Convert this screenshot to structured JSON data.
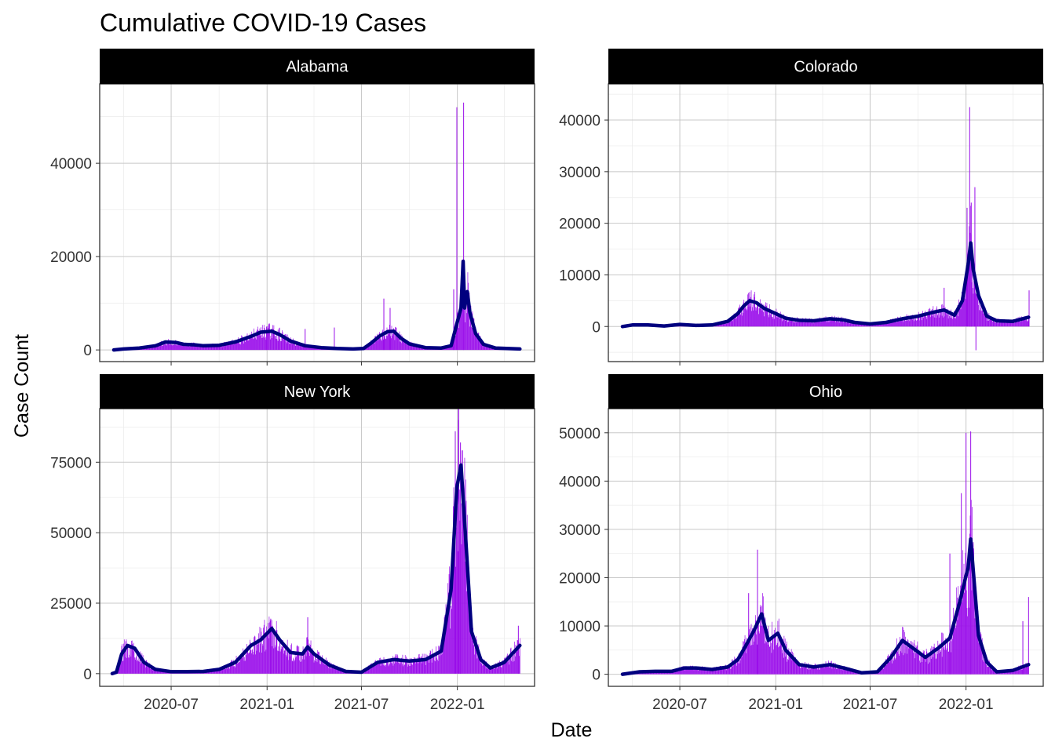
{
  "chart_data": {
    "type": "bar",
    "title": "Cumulative COVID-19 Cases",
    "xlabel": "Date",
    "ylabel": "Case Count",
    "x_range": [
      "2020-03-10",
      "2022-05-05"
    ],
    "x_ticks": [
      "2020-07-01",
      "2021-01-01",
      "2021-07-01",
      "2022-01-01"
    ],
    "x_tick_labels": [
      "2020-07",
      "2021-01",
      "2021-07",
      "2022-01"
    ],
    "colors": {
      "bars": "#9A0EEA",
      "smooth": "#00007F",
      "strip": "#000000",
      "strip_text": "#FFFFFF",
      "grid": "#D9D9D9"
    },
    "series_note": "",
    "panels": [
      {
        "name": "Alabama",
        "ylim": [
          -2500,
          57000
        ],
        "y_ticks": [
          0,
          20000,
          40000
        ],
        "y_tick_labels": [
          "0",
          "20000",
          "40000"
        ],
        "smooth": [
          [
            "2020-03-13",
            0
          ],
          [
            "2020-04-01",
            200
          ],
          [
            "2020-05-01",
            400
          ],
          [
            "2020-06-01",
            900
          ],
          [
            "2020-06-20",
            1700
          ],
          [
            "2020-07-10",
            1600
          ],
          [
            "2020-07-25",
            1200
          ],
          [
            "2020-08-15",
            1100
          ],
          [
            "2020-09-01",
            900
          ],
          [
            "2020-10-01",
            1000
          ],
          [
            "2020-11-01",
            1700
          ],
          [
            "2020-12-01",
            2900
          ],
          [
            "2020-12-20",
            3800
          ],
          [
            "2021-01-10",
            4000
          ],
          [
            "2021-01-25",
            3300
          ],
          [
            "2021-02-15",
            1900
          ],
          [
            "2021-03-15",
            900
          ],
          [
            "2021-04-15",
            500
          ],
          [
            "2021-05-15",
            300
          ],
          [
            "2021-06-15",
            200
          ],
          [
            "2021-07-05",
            300
          ],
          [
            "2021-07-20",
            1500
          ],
          [
            "2021-08-05",
            3000
          ],
          [
            "2021-08-20",
            3900
          ],
          [
            "2021-09-01",
            4000
          ],
          [
            "2021-09-15",
            2500
          ],
          [
            "2021-10-01",
            1300
          ],
          [
            "2021-11-01",
            500
          ],
          [
            "2021-12-01",
            400
          ],
          [
            "2021-12-20",
            900
          ],
          [
            "2022-01-01",
            6000
          ],
          [
            "2022-01-08",
            9000
          ],
          [
            "2022-01-12",
            19000
          ],
          [
            "2022-01-15",
            9000
          ],
          [
            "2022-01-20",
            12500
          ],
          [
            "2022-01-25",
            8000
          ],
          [
            "2022-02-05",
            3500
          ],
          [
            "2022-02-20",
            1200
          ],
          [
            "2022-03-15",
            400
          ],
          [
            "2022-05-01",
            200
          ]
        ],
        "spikes": [
          [
            "2021-12-31",
            52000
          ],
          [
            "2022-01-13",
            53000
          ],
          [
            "2021-08-13",
            11000
          ],
          [
            "2021-12-25",
            13000
          ],
          [
            "2021-03-15",
            4500
          ],
          [
            "2020-12-31",
            5000
          ],
          [
            "2021-05-10",
            4800
          ],
          [
            "2021-08-25",
            9000
          ]
        ]
      },
      {
        "name": "Colorado",
        "ylim": [
          -6800,
          47000
        ],
        "y_ticks": [
          0,
          10000,
          20000,
          30000,
          40000
        ],
        "y_tick_labels": [
          "0",
          "10000",
          "20000",
          "30000",
          "40000"
        ],
        "smooth": [
          [
            "2020-03-13",
            0
          ],
          [
            "2020-04-01",
            300
          ],
          [
            "2020-05-01",
            300
          ],
          [
            "2020-06-01",
            100
          ],
          [
            "2020-07-01",
            400
          ],
          [
            "2020-08-01",
            200
          ],
          [
            "2020-09-01",
            300
          ],
          [
            "2020-10-01",
            1000
          ],
          [
            "2020-10-20",
            2500
          ],
          [
            "2020-11-01",
            4000
          ],
          [
            "2020-11-12",
            5000
          ],
          [
            "2020-11-25",
            4600
          ],
          [
            "2020-12-10",
            3500
          ],
          [
            "2021-01-01",
            2500
          ],
          [
            "2021-01-20",
            1600
          ],
          [
            "2021-02-15",
            1200
          ],
          [
            "2021-03-15",
            1100
          ],
          [
            "2021-04-15",
            1500
          ],
          [
            "2021-05-10",
            1300
          ],
          [
            "2021-06-01",
            800
          ],
          [
            "2021-07-01",
            500
          ],
          [
            "2021-08-01",
            800
          ],
          [
            "2021-09-01",
            1500
          ],
          [
            "2021-10-01",
            2000
          ],
          [
            "2021-11-01",
            2800
          ],
          [
            "2021-11-20",
            3200
          ],
          [
            "2021-12-10",
            2200
          ],
          [
            "2021-12-25",
            5000
          ],
          [
            "2022-01-05",
            12000
          ],
          [
            "2022-01-10",
            16200
          ],
          [
            "2022-01-15",
            11000
          ],
          [
            "2022-01-25",
            6000
          ],
          [
            "2022-02-10",
            2000
          ],
          [
            "2022-03-01",
            1100
          ],
          [
            "2022-04-01",
            1000
          ],
          [
            "2022-05-01",
            1800
          ]
        ],
        "spikes": [
          [
            "2022-01-08",
            42500
          ],
          [
            "2022-01-18",
            27000
          ],
          [
            "2022-01-11",
            24000
          ],
          [
            "2022-01-03",
            23000
          ],
          [
            "2022-01-20",
            -4600
          ],
          [
            "2021-11-20",
            7500
          ],
          [
            "2022-05-02",
            7000
          ],
          [
            "2020-11-10",
            6500
          ]
        ]
      },
      {
        "name": "New York",
        "ylim": [
          -4500,
          94000
        ],
        "y_ticks": [
          0,
          25000,
          50000,
          75000
        ],
        "y_tick_labels": [
          "0",
          "25000",
          "50000",
          "75000"
        ],
        "smooth": [
          [
            "2020-03-10",
            0
          ],
          [
            "2020-03-18",
            500
          ],
          [
            "2020-03-28",
            7000
          ],
          [
            "2020-04-08",
            10000
          ],
          [
            "2020-04-22",
            9000
          ],
          [
            "2020-05-10",
            4000
          ],
          [
            "2020-06-01",
            1500
          ],
          [
            "2020-07-01",
            700
          ],
          [
            "2020-08-01",
            700
          ],
          [
            "2020-09-01",
            800
          ],
          [
            "2020-10-01",
            1500
          ],
          [
            "2020-11-01",
            4000
          ],
          [
            "2020-12-01",
            10000
          ],
          [
            "2020-12-20",
            12000
          ],
          [
            "2021-01-10",
            16000
          ],
          [
            "2021-01-25",
            12000
          ],
          [
            "2021-02-15",
            7500
          ],
          [
            "2021-03-10",
            7000
          ],
          [
            "2021-03-20",
            9500
          ],
          [
            "2021-04-01",
            7000
          ],
          [
            "2021-05-01",
            3000
          ],
          [
            "2021-06-01",
            800
          ],
          [
            "2021-07-01",
            500
          ],
          [
            "2021-08-01",
            4000
          ],
          [
            "2021-09-01",
            5000
          ],
          [
            "2021-10-01",
            4500
          ],
          [
            "2021-11-01",
            5000
          ],
          [
            "2021-12-01",
            8000
          ],
          [
            "2021-12-20",
            30000
          ],
          [
            "2021-12-31",
            66000
          ],
          [
            "2022-01-08",
            74000
          ],
          [
            "2022-01-18",
            45000
          ],
          [
            "2022-01-28",
            15000
          ],
          [
            "2022-02-15",
            5000
          ],
          [
            "2022-03-05",
            2000
          ],
          [
            "2022-04-01",
            4000
          ],
          [
            "2022-05-01",
            10000
          ]
        ],
        "spikes": [
          [
            "2021-12-28",
            86000
          ],
          [
            "2022-01-03",
            90000
          ],
          [
            "2022-01-07",
            82000
          ],
          [
            "2021-03-20",
            20000
          ],
          [
            "2021-01-08",
            19500
          ],
          [
            "2022-04-28",
            17000
          ],
          [
            "2020-04-05",
            11500
          ]
        ]
      },
      {
        "name": "Ohio",
        "ylim": [
          -2500,
          55000
        ],
        "y_ticks": [
          0,
          10000,
          20000,
          30000,
          40000,
          50000
        ],
        "y_tick_labels": [
          "0",
          "10000",
          "20000",
          "30000",
          "40000",
          "50000"
        ],
        "smooth": [
          [
            "2020-03-13",
            0
          ],
          [
            "2020-04-15",
            500
          ],
          [
            "2020-05-15",
            600
          ],
          [
            "2020-06-15",
            600
          ],
          [
            "2020-07-10",
            1300
          ],
          [
            "2020-08-01",
            1300
          ],
          [
            "2020-09-01",
            1000
          ],
          [
            "2020-10-01",
            1500
          ],
          [
            "2020-10-20",
            3000
          ],
          [
            "2020-11-05",
            6000
          ],
          [
            "2020-11-20",
            9000
          ],
          [
            "2020-12-05",
            12500
          ],
          [
            "2020-12-18",
            7000
          ],
          [
            "2021-01-05",
            8500
          ],
          [
            "2021-01-20",
            5000
          ],
          [
            "2021-02-15",
            2000
          ],
          [
            "2021-03-15",
            1500
          ],
          [
            "2021-04-15",
            2000
          ],
          [
            "2021-05-15",
            1200
          ],
          [
            "2021-06-15",
            300
          ],
          [
            "2021-07-15",
            500
          ],
          [
            "2021-08-10",
            3500
          ],
          [
            "2021-09-01",
            7000
          ],
          [
            "2021-09-20",
            5500
          ],
          [
            "2021-10-15",
            3500
          ],
          [
            "2021-11-10",
            5500
          ],
          [
            "2021-12-01",
            7500
          ],
          [
            "2021-12-20",
            15000
          ],
          [
            "2021-12-31",
            20000
          ],
          [
            "2022-01-05",
            22000
          ],
          [
            "2022-01-10",
            28000
          ],
          [
            "2022-01-16",
            20000
          ],
          [
            "2022-01-25",
            8000
          ],
          [
            "2022-02-10",
            2500
          ],
          [
            "2022-03-01",
            500
          ],
          [
            "2022-04-01",
            800
          ],
          [
            "2022-05-01",
            2000
          ]
        ],
        "spikes": [
          [
            "2022-01-01",
            50000
          ],
          [
            "2022-01-10",
            50300
          ],
          [
            "2021-12-23",
            37500
          ],
          [
            "2021-12-01",
            25000
          ],
          [
            "2020-11-27",
            25800
          ],
          [
            "2020-11-10",
            16800
          ],
          [
            "2022-04-20",
            11000
          ],
          [
            "2022-05-01",
            16000
          ]
        ]
      }
    ]
  }
}
